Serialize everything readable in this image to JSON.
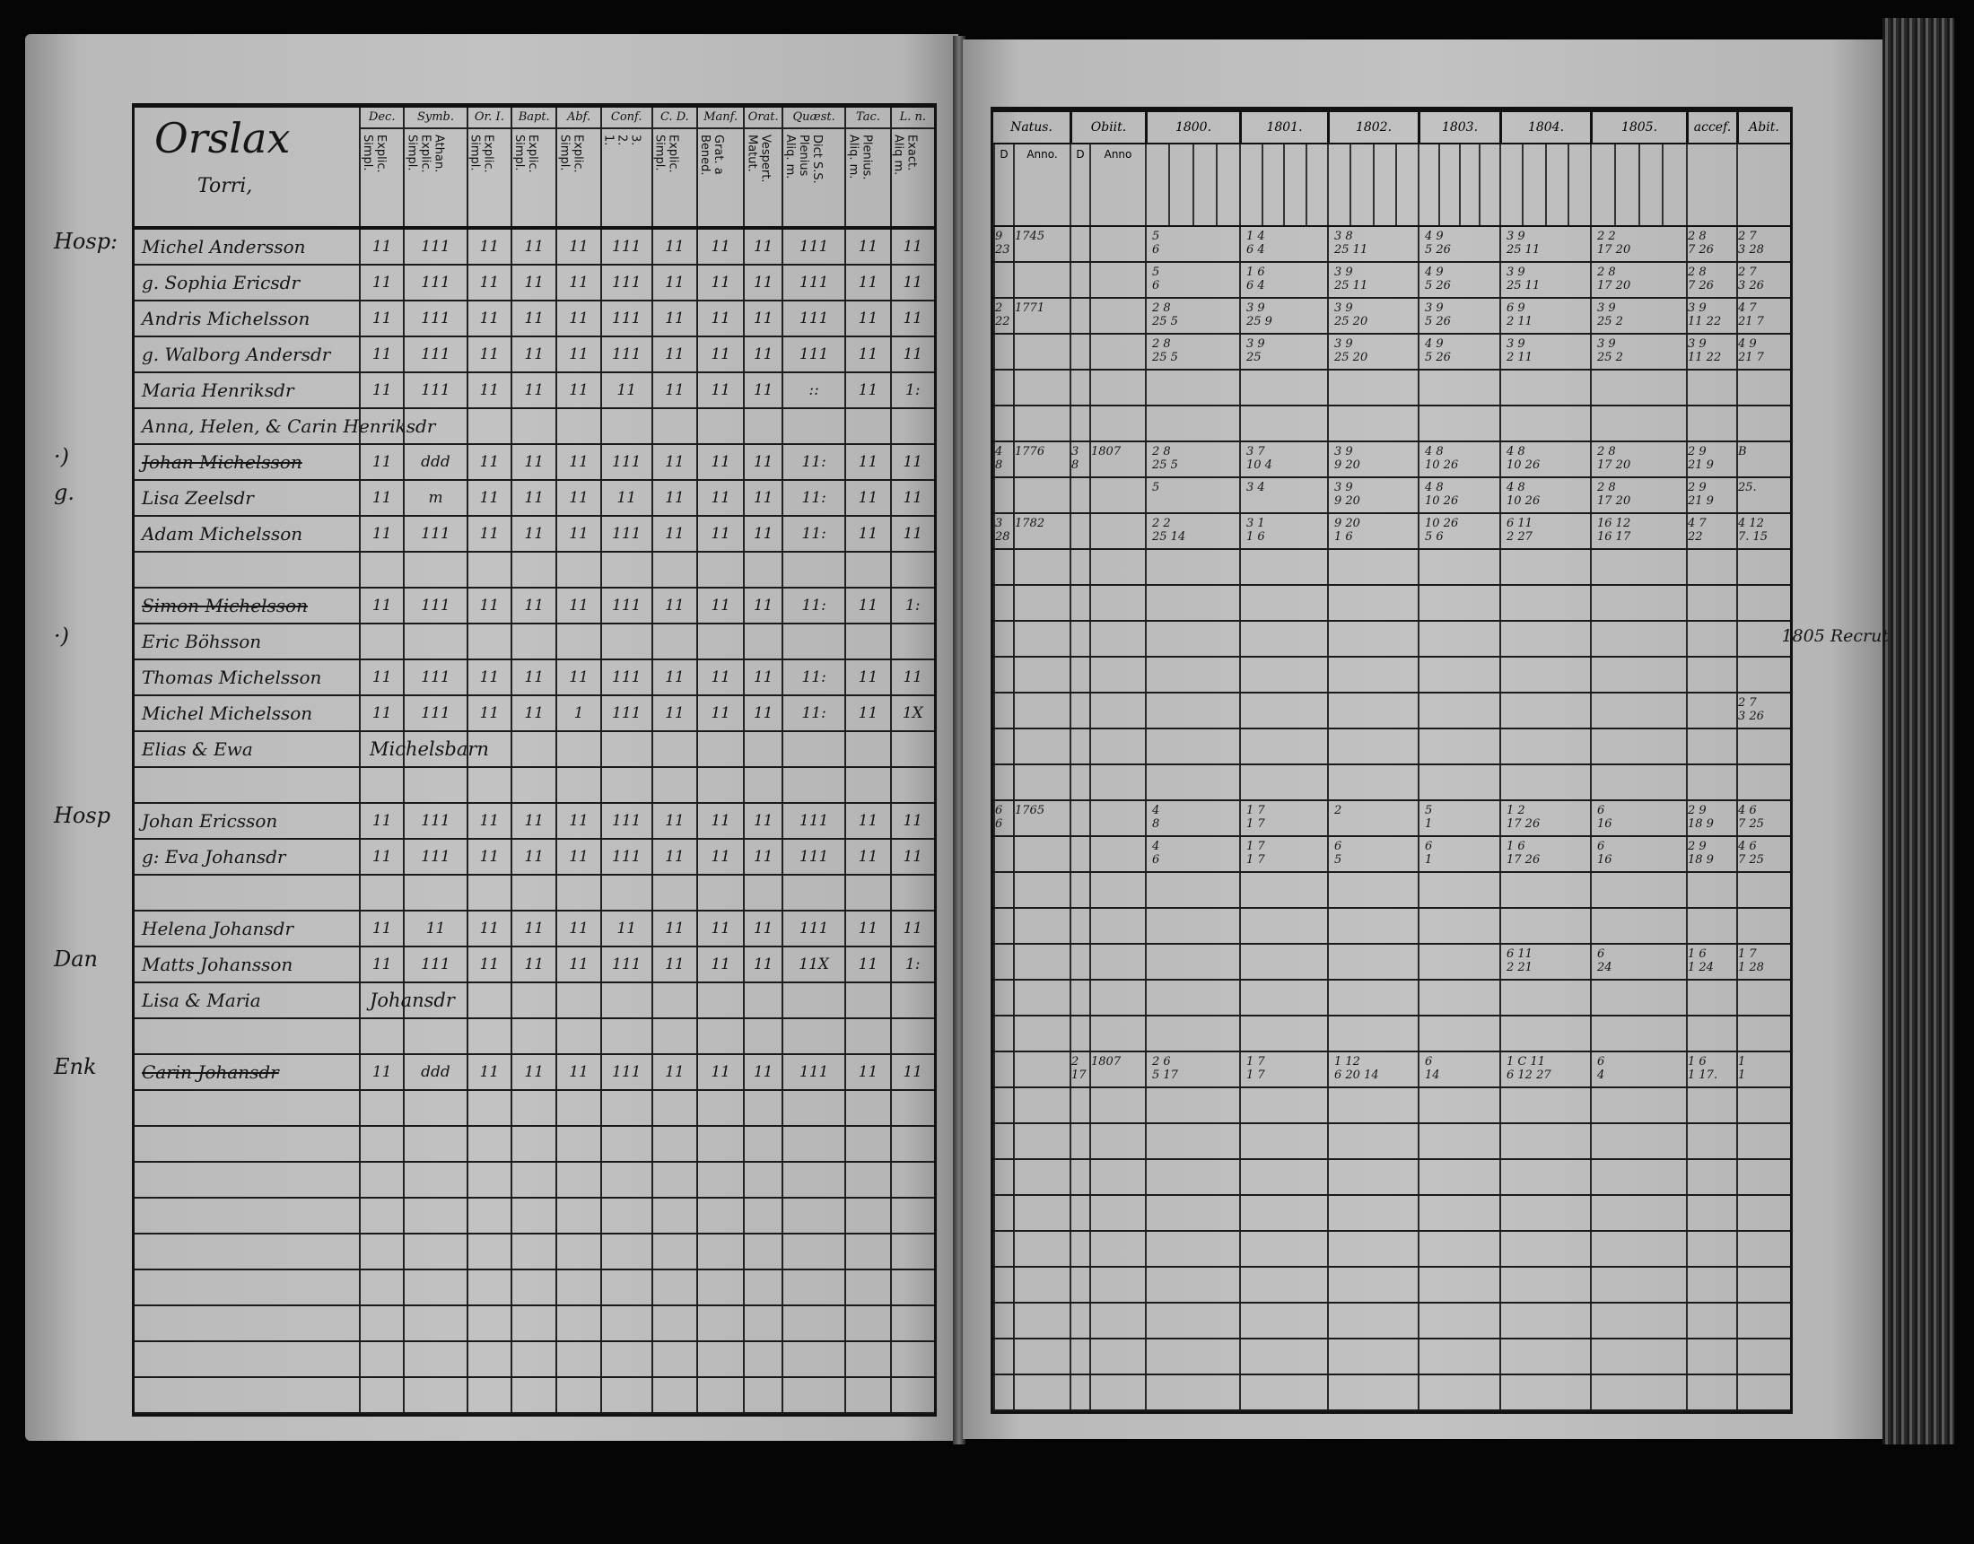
{
  "left": {
    "title": "Orslax",
    "subtitle": "Torri,",
    "columns": [
      {
        "name": "Dec.",
        "sub": "Explic.\nSimpl."
      },
      {
        "name": "Symb.",
        "sub": "Athan.\nExplic.\nSimpl."
      },
      {
        "name": "Or. I.",
        "sub": "Explic.\nSimpl."
      },
      {
        "name": "Bapt.",
        "sub": "Explic.\nSimpl."
      },
      {
        "name": "Abf.",
        "sub": "Explic.\nSimpl."
      },
      {
        "name": "Conf.",
        "sub": "3.\n2.\n1."
      },
      {
        "name": "C. D.",
        "sub": "Explic.\nSimpl."
      },
      {
        "name": "Manf.",
        "sub": "Grat. a\nBened."
      },
      {
        "name": "Orat.",
        "sub": "Vespert.\nMatut."
      },
      {
        "name": "Quæst.",
        "sub": "Dict S.S.\nPlenius\nAliq. m."
      },
      {
        "name": "Tac.",
        "sub": "Plenius.\nAliq. m."
      },
      {
        "name": "L. n.",
        "sub": "Exact.\nAliq m."
      }
    ],
    "rows": [
      {
        "margin": "Hosp:",
        "name": "Michel Andersson",
        "marks": [
          "11",
          "111",
          "11",
          "11",
          "11",
          "111",
          "11",
          "11",
          "11",
          "111",
          "11",
          "11"
        ]
      },
      {
        "name": "g. Sophia Ericsdr",
        "marks": [
          "11",
          "111",
          "11",
          "11",
          "11",
          "111",
          "11",
          "11",
          "11",
          "111",
          "11",
          "11"
        ]
      },
      {
        "name": "Andris Michelsson",
        "marks": [
          "11",
          "111",
          "11",
          "11",
          "11",
          "111",
          "11",
          "11",
          "11",
          "111",
          "11",
          "11"
        ]
      },
      {
        "name": "g. Walborg Andersdr",
        "marks": [
          "11",
          "111",
          "11",
          "11",
          "11",
          "111",
          "11",
          "11",
          "11",
          "111",
          "11",
          "11"
        ]
      },
      {
        "name": "Maria Henriksdr",
        "marks": [
          "11",
          "111",
          "11",
          "11",
          "11",
          "11",
          "11",
          "11",
          "11",
          "::",
          "11",
          "1:"
        ]
      },
      {
        "name": "Anna, Helen, & Carin Henriksdr"
      },
      {
        "margin": "·)",
        "name": "Johan Michelsson",
        "struck": true,
        "marks": [
          "11",
          "ddd",
          "11",
          "11",
          "11",
          "111",
          "11",
          "11",
          "11",
          "11:",
          "11",
          "11"
        ]
      },
      {
        "margin": "g.",
        "name": "Lisa Zeelsdr",
        "marks": [
          "11",
          "m",
          "11",
          "11",
          "11",
          "11",
          "11",
          "11",
          "11",
          "11:",
          "11",
          "11"
        ]
      },
      {
        "name": "Adam Michelsson",
        "marks": [
          "11",
          "111",
          "11",
          "11",
          "11",
          "111",
          "11",
          "11",
          "11",
          "11:",
          "11",
          "11"
        ]
      },
      {},
      {
        "name": "Simon Michelsson",
        "struck": true,
        "marks": [
          "11",
          "111",
          "11",
          "11",
          "11",
          "111",
          "11",
          "11",
          "11",
          "11:",
          "11",
          "1:"
        ]
      },
      {
        "margin": "·)",
        "name": "Eric Böhsson"
      },
      {
        "name": "Thomas Michelsson",
        "marks": [
          "11",
          "111",
          "11",
          "11",
          "11",
          "111",
          "11",
          "11",
          "11",
          "11:",
          "11",
          "11"
        ]
      },
      {
        "name": "Michel Michelsson",
        "marks": [
          "11",
          "111",
          "11",
          "11",
          "1",
          "111",
          "11",
          "11",
          "11",
          "11:",
          "11",
          "1X"
        ]
      },
      {
        "name": "Elias & Ewa",
        "note": "Michelsbarn"
      },
      {},
      {
        "margin": "Hosp",
        "name": "Johan Ericsson",
        "marks": [
          "11",
          "111",
          "11",
          "11",
          "11",
          "111",
          "11",
          "11",
          "11",
          "111",
          "11",
          "11"
        ]
      },
      {
        "name": "g: Eva Johansdr",
        "marks": [
          "11",
          "111",
          "11",
          "11",
          "11",
          "111",
          "11",
          "11",
          "11",
          "111",
          "11",
          "11"
        ]
      },
      {},
      {
        "name": "Helena Johansdr",
        "marks": [
          "11",
          "11",
          "11",
          "11",
          "11",
          "11",
          "11",
          "11",
          "11",
          "111",
          "11",
          "11"
        ]
      },
      {
        "margin": "Dan",
        "name": "Matts Johansson",
        "marks": [
          "11",
          "111",
          "11",
          "11",
          "11",
          "111",
          "11",
          "11",
          "11",
          "11X",
          "11",
          "1:"
        ]
      },
      {
        "name": "Lisa & Maria",
        "note": "Johansdr"
      },
      {},
      {
        "margin": "Enk",
        "name": "Carin Johansdr",
        "struck": true,
        "marks": [
          "11",
          "ddd",
          "11",
          "11",
          "11",
          "111",
          "11",
          "11",
          "11",
          "111",
          "11",
          "11"
        ]
      },
      {},
      {},
      {},
      {},
      {},
      {},
      {},
      {},
      {}
    ]
  },
  "right": {
    "headers": [
      "Natus.",
      "Obiit.",
      "1800.",
      "1801.",
      "1802.",
      "1803.",
      "1804.",
      "1805.",
      "accef.",
      "Abit."
    ],
    "subheaders": [
      "D",
      "Anno.",
      "D",
      "Anno"
    ],
    "rows": [
      {
        "nd": "9\n23",
        "na": "1745",
        "years": [
          "5\n6",
          "1 4\n6 4",
          "3 8\n25 11",
          "4 9\n5 26",
          "3 9\n25 11",
          "2 2\n17 20"
        ],
        "accef": "2 8\n7 26",
        "abit": "2 7\n3 28"
      },
      {
        "years": [
          "5\n6",
          "1 6\n6 4",
          "3 9\n25 11",
          "4 9\n5 26",
          "3 9\n25 11",
          "2 8\n17 20"
        ],
        "accef": "2 8\n7 26",
        "abit": "2 7\n3 26"
      },
      {
        "nd": "2\n22",
        "na": "1771",
        "years": [
          "2 8\n25 5",
          "3 9\n25 9",
          "3 9\n25 20",
          "3 9\n5 26",
          "6 9\n2 11",
          "3 9\n25 2"
        ],
        "accef": "3 9\n11 22",
        "abit": "4 7\n21 7"
      },
      {
        "years": [
          "2 8\n25 5",
          "3 9\n25",
          "3 9\n25 20",
          "4 9\n5 26",
          "3 9\n2 11",
          "3 9\n25 2"
        ],
        "accef": "3 9\n11 22",
        "abit": "4 9\n21 7"
      },
      {},
      {},
      {
        "nd": "4\n8",
        "na": "1776",
        "od": "3\n8",
        "oa": "1807",
        "years": [
          "2 8\n25 5",
          "3 7\n10 4",
          "3 9\n9 20",
          "4 8\n10 26",
          "4 8\n10 26",
          "2 8\n17 20"
        ],
        "accef": "2 9\n21 9",
        "abit": "B"
      },
      {
        "years": [
          "5",
          "3 4",
          "3 9\n9 20",
          "4 8\n10 26",
          "4 8\n10 26",
          "2 8\n17 20"
        ],
        "accef": "2 9\n21 9",
        "abit": "25."
      },
      {
        "nd": "3\n28",
        "na": "1782",
        "years": [
          "2 2\n25 14",
          "3 1\n1 6",
          "9 20\n1 6",
          "10 26\n5 6",
          "6 11\n2 27",
          "16 12\n16 17"
        ],
        "accef": "4 7\n22",
        "abit": "4 12\n7. 15"
      },
      {},
      {},
      {
        "note": "1805 Recrut"
      },
      {},
      {
        "abit": "2 7\n3 26"
      },
      {},
      {},
      {
        "nd": "6\n6",
        "na": "1765",
        "years": [
          "4\n8",
          "1 7\n1 7",
          "2",
          "5\n1",
          "1 2\n17 26",
          "6\n16"
        ],
        "accef": "2 9\n18 9",
        "abit": "4 6\n7 25"
      },
      {
        "years": [
          "4\n6",
          "1 7\n1 7",
          "6\n5",
          "6\n1",
          "1 6\n17 26",
          "6\n16"
        ],
        "accef": "2 9\n18 9",
        "abit": "4 6\n7 25"
      },
      {},
      {},
      {
        "years": [
          "",
          "",
          "",
          "",
          "6 11\n2 21",
          "6\n24"
        ],
        "accef": "1 6\n1 24",
        "abit": "1 7\n1 28"
      },
      {},
      {},
      {
        "od": "2\n17",
        "oa": "1807",
        "years": [
          "2 6\n5 17",
          "1 7\n1 7",
          "1 12\n6 20 14",
          "6\n14",
          "1 C 11\n6 12 27",
          "6\n4"
        ],
        "accef": "1 6\n1 17.",
        "abit": "1\n1"
      },
      {},
      {},
      {},
      {},
      {},
      {},
      {},
      {},
      {}
    ]
  }
}
